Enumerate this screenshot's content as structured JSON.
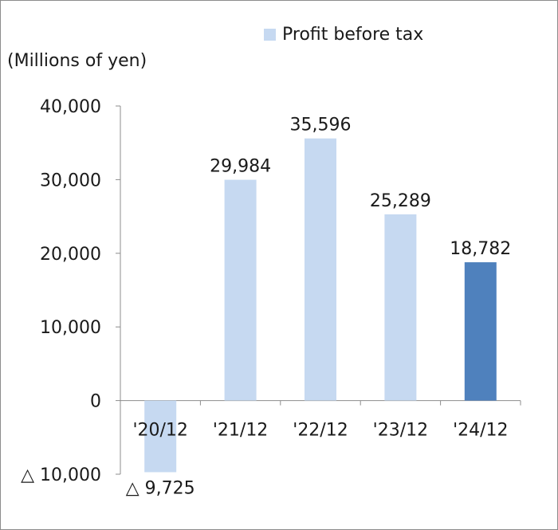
{
  "chart_data": {
    "type": "bar",
    "unit_label": "(Millions of yen)",
    "legend": {
      "label": "Profit before tax",
      "color": "#c6d9f1",
      "placement": "top-right"
    },
    "categories": [
      "'20/12",
      "'21/12",
      "'22/12",
      "'23/12",
      "'24/12"
    ],
    "series": [
      {
        "name": "Profit before tax",
        "values": [
          -9725,
          29984,
          35596,
          25289,
          18782
        ],
        "data_labels": [
          "△ 9,725",
          "29,984",
          "35,596",
          "25,289",
          "18,782"
        ]
      }
    ],
    "colors": {
      "default": "#c6d9f1",
      "highlight": "#4f81bd",
      "axis": "#8c8c8c"
    },
    "highlight_index": 4,
    "ylim": [
      -10000,
      40000
    ],
    "yticks": [
      40000,
      30000,
      20000,
      10000,
      0,
      -10000
    ],
    "ytick_labels": [
      "40,000",
      "30,000",
      "20,000",
      "10,000",
      "0",
      "△ 10,000"
    ],
    "grid": false
  }
}
